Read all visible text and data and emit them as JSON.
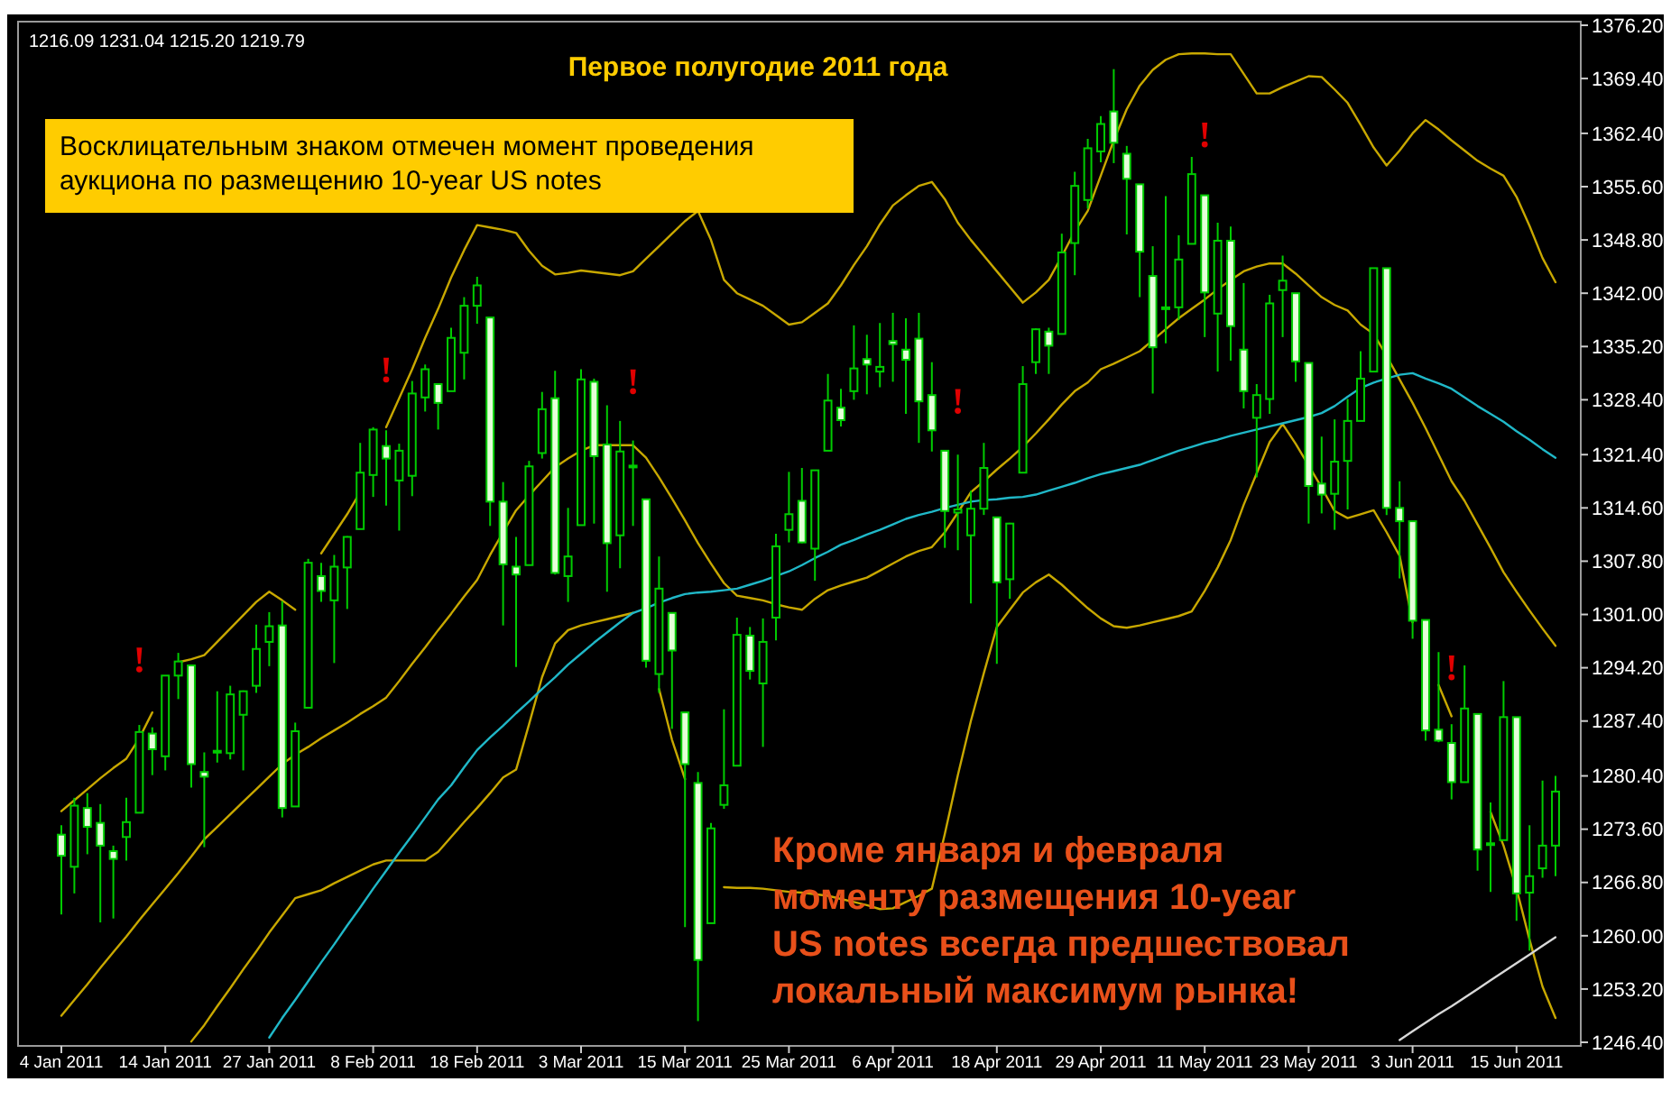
{
  "chart_data": {
    "type": "candlestick",
    "title": "Первое полугодие 2011 года",
    "annotations": [
      "1216.09 1231.04 1215.20 1219.79",
      "Восклицательным знаком отмечен момент проведения\nаукциона по размещению 10-year US notes",
      "Кроме января и февраля\nмоменту размещения 10-year\nUS notes всегда предшествовал\nлокальный максимум рынка!"
    ],
    "categories": [
      "4 Jan 2011",
      null,
      null,
      null,
      null,
      null,
      null,
      null,
      "14 Jan 2011",
      null,
      null,
      null,
      null,
      null,
      null,
      null,
      "27 Jan 2011",
      null,
      null,
      null,
      null,
      null,
      null,
      null,
      "8 Feb 2011",
      null,
      null,
      null,
      null,
      null,
      null,
      null,
      "18 Feb 2011",
      null,
      null,
      null,
      null,
      null,
      null,
      null,
      "3 Mar 2011",
      null,
      null,
      null,
      null,
      null,
      null,
      null,
      "15 Mar 2011",
      null,
      null,
      null,
      null,
      null,
      null,
      null,
      "25 Mar 2011",
      null,
      null,
      null,
      null,
      null,
      null,
      null,
      "6 Apr 2011",
      null,
      null,
      null,
      null,
      null,
      null,
      null,
      "18 Apr 2011",
      null,
      null,
      null,
      null,
      null,
      null,
      null,
      "29 Apr 2011",
      null,
      null,
      null,
      null,
      null,
      null,
      null,
      "11 May 2011",
      null,
      null,
      null,
      null,
      null,
      null,
      null,
      "23 May 2011",
      null,
      null,
      null,
      null,
      null,
      null,
      null,
      "3 Jun 2011",
      null,
      null,
      null,
      null,
      null,
      null,
      null,
      "15 Jun 2011",
      null,
      null,
      null
    ],
    "ylim": [
      1246.4,
      1376.2
    ],
    "yticks": [
      {
        "value": 1376.2,
        "label": "1376.20"
      },
      {
        "value": 1369.4,
        "label": "1369.40"
      },
      {
        "value": 1362.4,
        "label": "1362.40"
      },
      {
        "value": 1355.6,
        "label": "1355.60"
      },
      {
        "value": 1348.8,
        "label": "1348.80"
      },
      {
        "value": 1342,
        "label": "1342.00"
      },
      {
        "value": 1335.2,
        "label": "1335.20"
      },
      {
        "value": 1328.4,
        "label": "1328.40"
      },
      {
        "value": 1321.4,
        "label": "1321.40"
      },
      {
        "value": 1314.6,
        "label": "1314.60"
      },
      {
        "value": 1307.8,
        "label": "1307.80"
      },
      {
        "value": 1301,
        "label": "1301.00"
      },
      {
        "value": 1294.2,
        "label": "1294.20"
      },
      {
        "value": 1287.4,
        "label": "1287.40"
      },
      {
        "value": 1280.4,
        "label": "1280.40"
      },
      {
        "value": 1273.6,
        "label": "1273.60"
      },
      {
        "value": 1266.8,
        "label": "1266.80"
      },
      {
        "value": 1260,
        "label": "1260.00"
      },
      {
        "value": 1253.2,
        "label": "1253.20"
      },
      {
        "value": 1246.4,
        "label": "1246.40"
      }
    ],
    "color": "#00cc00",
    "ohlc": [
      [
        1272.9,
        1274.1,
        1262.7,
        1270.2
      ],
      [
        1268.8,
        1277.6,
        1265.4,
        1276.6
      ],
      [
        1276.3,
        1278.2,
        1270.4,
        1273.9
      ],
      [
        1274.4,
        1276.8,
        1261.7,
        1271.5
      ],
      [
        1270.8,
        1271.5,
        1262.2,
        1269.8
      ],
      [
        1272.6,
        1277.6,
        1269.6,
        1274.5
      ],
      [
        1275.7,
        1286.9,
        1275.7,
        1286.0
      ],
      [
        1285.8,
        1286.6,
        1280.5,
        1283.8
      ],
      [
        1282.9,
        1293.2,
        1281.1,
        1293.2
      ],
      [
        1293.2,
        1296.1,
        1290.2,
        1295.0
      ],
      [
        1294.5,
        1294.6,
        1278.9,
        1281.9
      ],
      [
        1280.9,
        1283.4,
        1271.3,
        1280.3
      ],
      [
        1283.6,
        1291.2,
        1282.1,
        1283.4
      ],
      [
        1283.3,
        1291.9,
        1282.5,
        1290.8
      ],
      [
        1288.2,
        1291.3,
        1281.1,
        1291.2
      ],
      [
        1291.9,
        1299.7,
        1291.0,
        1296.6
      ],
      [
        1297.5,
        1301.3,
        1294.4,
        1299.5
      ],
      [
        1299.6,
        1302.7,
        1275.1,
        1276.3
      ],
      [
        1276.5,
        1287.2,
        1276.5,
        1286.1
      ],
      [
        1289.1,
        1308.1,
        1289.1,
        1307.6
      ],
      [
        1305.9,
        1307.6,
        1302.6,
        1304.0
      ],
      [
        1302.8,
        1308.6,
        1294.8,
        1307.1
      ],
      [
        1307.0,
        1311.0,
        1301.7,
        1310.9
      ],
      [
        1311.9,
        1322.9,
        1311.9,
        1319.1
      ],
      [
        1318.8,
        1324.9,
        1316.0,
        1324.6
      ],
      [
        1322.5,
        1324.5,
        1314.9,
        1320.9
      ],
      [
        1318.1,
        1322.8,
        1311.7,
        1321.9
      ],
      [
        1318.7,
        1330.8,
        1316.1,
        1329.2
      ],
      [
        1328.7,
        1332.9,
        1326.9,
        1332.3
      ],
      [
        1330.4,
        1330.4,
        1324.6,
        1328.0
      ],
      [
        1329.5,
        1337.6,
        1329.5,
        1336.3
      ],
      [
        1334.4,
        1341.5,
        1331.0,
        1340.4
      ],
      [
        1340.4,
        1344.1,
        1338.1,
        1343.0
      ],
      [
        1338.9,
        1338.9,
        1312.3,
        1315.4
      ],
      [
        1315.4,
        1317.9,
        1299.6,
        1307.4
      ],
      [
        1307.1,
        1310.9,
        1294.3,
        1306.1
      ],
      [
        1307.3,
        1320.6,
        1307.3,
        1319.9
      ],
      [
        1321.6,
        1329.4,
        1320.9,
        1327.2
      ],
      [
        1328.6,
        1332.1,
        1306.1,
        1306.3
      ],
      [
        1305.9,
        1314.6,
        1302.6,
        1308.4
      ],
      [
        1312.4,
        1332.3,
        1312.4,
        1331.0
      ],
      [
        1330.7,
        1331.1,
        1312.6,
        1321.2
      ],
      [
        1322.7,
        1327.7,
        1303.9,
        1310.1
      ],
      [
        1311.1,
        1325.7,
        1306.9,
        1321.8
      ],
      [
        1319.9,
        1323.2,
        1312.3,
        1320.0
      ],
      [
        1315.7,
        1315.7,
        1294.2,
        1295.1
      ],
      [
        1293.4,
        1308.4,
        1291.0,
        1304.3
      ],
      [
        1301.2,
        1301.2,
        1286.4,
        1296.4
      ],
      [
        1288.5,
        1288.5,
        1261.1,
        1281.9
      ],
      [
        1279.5,
        1280.9,
        1249.1,
        1256.9
      ],
      [
        1261.6,
        1274.4,
        1261.6,
        1273.7
      ],
      [
        1276.7,
        1288.9,
        1276.2,
        1279.2
      ],
      [
        1281.7,
        1300.6,
        1281.7,
        1298.4
      ],
      [
        1298.3,
        1299.4,
        1292.7,
        1293.8
      ],
      [
        1292.2,
        1300.5,
        1284.1,
        1297.5
      ],
      [
        1300.6,
        1311.3,
        1297.7,
        1309.7
      ],
      [
        1311.8,
        1319.2,
        1310.2,
        1313.8
      ],
      [
        1315.5,
        1319.7,
        1310.1,
        1310.2
      ],
      [
        1309.4,
        1319.4,
        1305.3,
        1319.4
      ],
      [
        1321.9,
        1331.7,
        1321.9,
        1328.3
      ],
      [
        1327.4,
        1329.8,
        1325.0,
        1325.8
      ],
      [
        1329.5,
        1337.9,
        1328.4,
        1332.4
      ],
      [
        1333.6,
        1336.7,
        1329.1,
        1332.9
      ],
      [
        1332.0,
        1338.2,
        1330.0,
        1332.6
      ],
      [
        1335.9,
        1339.5,
        1330.7,
        1335.5
      ],
      [
        1334.8,
        1338.8,
        1326.6,
        1333.5
      ],
      [
        1336.2,
        1339.5,
        1322.9,
        1328.2
      ],
      [
        1329.0,
        1333.2,
        1321.8,
        1324.5
      ],
      [
        1321.9,
        1321.9,
        1309.5,
        1314.2
      ],
      [
        1314.0,
        1321.4,
        1309.2,
        1314.4
      ],
      [
        1311.1,
        1316.8,
        1302.4,
        1314.5
      ],
      [
        1314.5,
        1322.9,
        1313.7,
        1319.7
      ],
      [
        1313.4,
        1313.4,
        1294.7,
        1305.1
      ],
      [
        1305.5,
        1312.7,
        1303.0,
        1312.6
      ],
      [
        1319.1,
        1332.7,
        1319.1,
        1330.4
      ],
      [
        1333.2,
        1337.5,
        1331.7,
        1337.4
      ],
      [
        1337.1,
        1337.6,
        1331.7,
        1335.3
      ],
      [
        1336.8,
        1349.6,
        1336.8,
        1347.2
      ],
      [
        1348.4,
        1357.5,
        1344.3,
        1355.7
      ],
      [
        1353.9,
        1361.7,
        1352.8,
        1360.5
      ],
      [
        1360.1,
        1364.6,
        1358.7,
        1363.6
      ],
      [
        1365.2,
        1370.6,
        1358.6,
        1361.2
      ],
      [
        1359.8,
        1360.8,
        1349.5,
        1356.6
      ],
      [
        1355.9,
        1355.9,
        1341.5,
        1347.3
      ],
      [
        1344.2,
        1348.0,
        1329.2,
        1335.1
      ],
      [
        1340.2,
        1354.4,
        1335.6,
        1340.2
      ],
      [
        1340.2,
        1349.4,
        1338.6,
        1346.3
      ],
      [
        1348.3,
        1359.4,
        1348.3,
        1357.2
      ],
      [
        1354.5,
        1354.5,
        1336.4,
        1342.1
      ],
      [
        1339.4,
        1351.0,
        1332.0,
        1348.7
      ],
      [
        1348.7,
        1350.5,
        1333.4,
        1337.8
      ],
      [
        1334.8,
        1343.3,
        1327.3,
        1329.5
      ],
      [
        1326.1,
        1330.4,
        1318.5,
        1329.0
      ],
      [
        1328.5,
        1341.8,
        1326.6,
        1340.7
      ],
      [
        1342.4,
        1346.8,
        1336.4,
        1343.6
      ],
      [
        1342.0,
        1342.0,
        1330.7,
        1333.3
      ],
      [
        1333.1,
        1333.1,
        1312.6,
        1317.4
      ],
      [
        1317.7,
        1323.7,
        1313.9,
        1316.3
      ],
      [
        1316.4,
        1325.9,
        1311.8,
        1320.5
      ],
      [
        1320.6,
        1328.5,
        1314.4,
        1325.7
      ],
      [
        1325.7,
        1334.6,
        1325.7,
        1331.1
      ],
      [
        1332.0,
        1345.2,
        1332.0,
        1345.2
      ],
      [
        1345.2,
        1345.2,
        1313.7,
        1314.6
      ],
      [
        1314.6,
        1318.0,
        1305.6,
        1312.9
      ],
      [
        1312.9,
        1312.9,
        1297.9,
        1300.2
      ],
      [
        1300.3,
        1300.3,
        1284.9,
        1286.2
      ],
      [
        1286.3,
        1296.2,
        1284.7,
        1284.9
      ],
      [
        1284.6,
        1287.0,
        1277.4,
        1279.6
      ],
      [
        1279.6,
        1294.5,
        1279.6,
        1289.0
      ],
      [
        1288.3,
        1288.3,
        1268.3,
        1271.0
      ],
      [
        1271.6,
        1277.0,
        1265.6,
        1271.8
      ],
      [
        1272.2,
        1292.5,
        1272.2,
        1287.9
      ],
      [
        1287.9,
        1287.9,
        1261.9,
        1265.4
      ],
      [
        1265.5,
        1274.1,
        1258.1,
        1267.6
      ],
      [
        1268.6,
        1279.8,
        1267.4,
        1271.5
      ],
      [
        1271.5,
        1280.4,
        1267.6,
        1278.4
      ]
    ],
    "series": [
      {
        "type": "line",
        "color": "#c8a800",
        "values": [
          1275.9,
          1277.3,
          1278.7,
          1280.1,
          1281.4,
          1282.6,
          1285.2,
          1288.5,
          null,
          1294.9,
          1295.3,
          1295.8,
          1297.5,
          1299.2,
          1300.9,
          1302.6,
          1303.9,
          1302.8,
          1301.6,
          null,
          1308.8,
          1311.3,
          1313.8,
          1316.6,
          null,
          1324.9,
          1328.6,
          1332.3,
          1336.3,
          1340.0,
          1344.0,
          1347.5,
          1350.7,
          1350.4,
          1350.1,
          1349.7,
          1347.4,
          1345.5,
          1344.4,
          1344.6,
          1344.9,
          1344.7,
          1344.5,
          1344.3,
          1344.8,
          1346.4,
          1348.0,
          1349.6,
          1351.2,
          1352.5,
          1348.8,
          1343.7,
          1342.0,
          1341.2,
          1340.4,
          1339.2,
          1338.0,
          1338.3,
          1339.5,
          1340.7,
          1343.0,
          1345.6,
          1348.0,
          1350.8,
          1353.2,
          1354.5,
          1355.7,
          1356.2,
          1354.0,
          1351.0,
          1348.8,
          1346.8,
          1344.8,
          1342.8,
          1340.8,
          1342.1,
          1343.7,
          1346.7,
          1349.9,
          1352.5,
          1357.0,
          1361.5,
          1365.5,
          1368.5,
          1370.5,
          1371.8,
          1372.5,
          1372.6,
          1372.6,
          1372.5,
          1372.5,
          1370.0,
          1367.5,
          1367.5,
          1368.3,
          1369.0,
          1369.7,
          1369.6,
          1368.0,
          1366.3,
          1363.5,
          1360.6,
          1358.3,
          1360.2,
          1362.4,
          1364.1,
          1362.9,
          1361.5,
          1360.2,
          1358.9,
          1357.9,
          1357.0,
          1354.3,
          1350.6,
          1346.5,
          1343.4
        ]
      },
      {
        "type": "line",
        "color": "#c8a800",
        "values": [
          1249.8,
          1251.8,
          1253.8,
          1255.9,
          1257.9,
          1259.9,
          1262.0,
          1264.0,
          1266.0,
          1268.0,
          1270.1,
          1272.3,
          1273.9,
          1275.5,
          1277.1,
          1278.7,
          1280.3,
          1281.9,
          1283.1,
          1284.1,
          1285.2,
          1286.2,
          1287.2,
          1288.3,
          1289.3,
          1290.4,
          1292.5,
          1294.7,
          1296.8,
          1299.0,
          1301.1,
          1303.3,
          1305.4,
          1308.6,
          1311.5,
          1314.3,
          1316.2,
          1318.0,
          1319.8,
          1320.9,
          1321.9,
          1322.6,
          1322.6,
          1322.6,
          1322.6,
          1321.0,
          1318.5,
          1315.8,
          1313.0,
          1310.1,
          1307.5,
          1305.0,
          1303.4,
          1303.1,
          1302.8,
          1302.3,
          1301.9,
          1301.6,
          1303.0,
          1304.1,
          1304.7,
          1305.2,
          1305.7,
          1306.6,
          1307.5,
          1308.4,
          1309.1,
          1309.6,
          1311.5,
          1314.0,
          1316.6,
          1318.0,
          1319.5,
          1320.9,
          1322.4,
          1324.1,
          1325.9,
          1327.8,
          1329.5,
          1330.6,
          1332.3,
          1333.0,
          1333.8,
          1334.6,
          1336.0,
          1337.4,
          1338.8,
          1340.0,
          1341.2,
          1342.5,
          1343.7,
          1344.8,
          1345.4,
          1345.8,
          1345.8,
          1344.5,
          1343.0,
          1341.5,
          1340.5,
          1339.8,
          1338.0,
          1336.8,
          1334.0,
          1331.0,
          1328.0,
          1324.8,
          1321.4,
          1318.0,
          1315.5,
          1312.5,
          1309.5,
          1306.4,
          1303.9,
          1301.5,
          1299.2,
          1297.0
        ]
      },
      {
        "type": "line",
        "color": "#c8a800",
        "values": [
          null,
          null,
          null,
          null,
          null,
          null,
          null,
          null,
          null,
          null,
          1246.5,
          1248.6,
          1251.0,
          1253.3,
          1255.7,
          1258.0,
          1260.4,
          1262.6,
          1264.8,
          1265.3,
          1265.8,
          1266.7,
          1267.5,
          1268.3,
          1269.1,
          1269.6,
          1269.6,
          1269.6,
          1269.6,
          1270.7,
          1272.6,
          1274.5,
          1276.3,
          1278.2,
          1280.2,
          1281.2,
          1287.0,
          1293.0,
          1297.3,
          1299.0,
          1299.6,
          1300.0,
          1300.4,
          1300.8,
          1301.2,
          null,
          1291.5,
          1285.0,
          1280.0,
          null,
          null,
          1266.2,
          1266.1,
          1266.1,
          1266.0,
          1265.8,
          1265.6,
          1265.5,
          1265.3,
          1265.1,
          1264.7,
          1264.3,
          1263.9,
          1263.4,
          1263.5,
          1264.3,
          1265.1,
          1266.0,
          1273.0,
          1280.5,
          1287.4,
          1293.5,
          1299.4,
          1301.6,
          1303.8,
          1305.1,
          1306.1,
          1304.8,
          1303.3,
          1301.8,
          1300.5,
          1299.5,
          1299.3,
          1299.6,
          1300.0,
          1300.4,
          1300.8,
          1301.4,
          1304.0,
          1307.0,
          1310.5,
          1315.0,
          1319.0,
          1323.0,
          1325.3,
          1322.8,
          1320.0,
          1317.2,
          1314.2,
          1313.3,
          1313.8,
          1314.3,
          1311.5,
          1308.5,
          1300.0,
          null,
          1292.0,
          1288.0,
          null,
          null,
          1275.8,
          1271.5,
          1266.0,
          1259.5,
          1253.5,
          1249.5
        ]
      },
      {
        "type": "line",
        "color": "#20b8c8",
        "values": [
          null,
          null,
          null,
          null,
          null,
          null,
          null,
          null,
          null,
          null,
          null,
          null,
          null,
          null,
          null,
          null,
          1247.0,
          1249.5,
          1251.8,
          1254.2,
          1256.6,
          1258.9,
          1261.3,
          1263.6,
          1266.0,
          1268.3,
          1270.6,
          1272.8,
          1275.1,
          1277.4,
          1279.2,
          1281.5,
          1283.7,
          1285.3,
          1286.8,
          1288.4,
          1289.9,
          1291.5,
          1293.0,
          1294.6,
          1296.0,
          1297.4,
          1298.7,
          1300.0,
          1301.2,
          1301.8,
          1302.5,
          1303.1,
          1303.6,
          1303.8,
          1303.9,
          1304.1,
          1304.3,
          1304.8,
          1305.3,
          1305.9,
          1306.5,
          1307.3,
          1308.2,
          1309.0,
          1309.9,
          1310.5,
          1311.2,
          1311.8,
          1312.5,
          1313.2,
          1313.7,
          1314.1,
          1314.6,
          1315.0,
          1315.4,
          1315.6,
          1315.7,
          1315.9,
          1316.0,
          1316.3,
          1316.8,
          1317.3,
          1317.8,
          1318.4,
          1318.9,
          1319.3,
          1319.7,
          1320.1,
          1320.7,
          1321.3,
          1321.9,
          1322.4,
          1322.9,
          1323.3,
          1323.8,
          1324.2,
          1324.6,
          1325.0,
          1325.4,
          1325.8,
          1326.2,
          1326.7,
          1327.6,
          1328.8,
          1329.9,
          1330.6,
          1331.1,
          1331.6,
          1331.8,
          1331.1,
          1330.5,
          1329.8,
          1328.7,
          1327.6,
          1326.6,
          1325.6,
          1324.4,
          1323.3,
          1322.1,
          1321.0
        ]
      },
      {
        "type": "line",
        "color": "#d8d8d8",
        "values": [
          null,
          null,
          null,
          null,
          null,
          null,
          null,
          null,
          null,
          null,
          null,
          null,
          null,
          null,
          null,
          null,
          null,
          null,
          null,
          null,
          null,
          null,
          null,
          null,
          null,
          null,
          null,
          null,
          null,
          null,
          null,
          null,
          null,
          null,
          null,
          null,
          null,
          null,
          null,
          null,
          null,
          null,
          null,
          null,
          null,
          null,
          null,
          null,
          null,
          null,
          null,
          null,
          null,
          null,
          null,
          null,
          null,
          null,
          null,
          null,
          null,
          null,
          null,
          null,
          null,
          null,
          null,
          null,
          null,
          null,
          null,
          null,
          null,
          null,
          null,
          null,
          null,
          null,
          null,
          null,
          null,
          null,
          null,
          null,
          null,
          null,
          null,
          null,
          null,
          null,
          null,
          null,
          null,
          null,
          null,
          null,
          null,
          null,
          null,
          null,
          null,
          null,
          null,
          1246.7,
          1247.8,
          1248.9,
          1250.0,
          1251.0,
          1252.1,
          1253.2,
          1254.3,
          1255.4,
          1256.5,
          1257.6,
          1258.7,
          1259.8
        ]
      },
      {
        "type": "scatter",
        "color": "#e00000",
        "values": [
          null,
          null,
          null,
          null,
          null,
          null,
          1294,
          null,
          null,
          null,
          null,
          null,
          null,
          null,
          null,
          null,
          null,
          null,
          null,
          null,
          null,
          null,
          null,
          null,
          null,
          1331,
          null,
          null,
          null,
          null,
          null,
          null,
          null,
          null,
          null,
          null,
          null,
          null,
          null,
          null,
          null,
          null,
          null,
          null,
          1329.5,
          null,
          null,
          null,
          null,
          null,
          null,
          null,
          null,
          null,
          null,
          null,
          null,
          null,
          null,
          null,
          null,
          null,
          null,
          null,
          null,
          null,
          null,
          null,
          null,
          1327,
          null,
          null,
          null,
          null,
          null,
          null,
          null,
          null,
          null,
          null,
          null,
          null,
          null,
          null,
          null,
          null,
          null,
          null,
          1361,
          null,
          null,
          null,
          null,
          null,
          null,
          null,
          null,
          null,
          null,
          null,
          null,
          null,
          null,
          null,
          null,
          null,
          null,
          1293,
          null,
          null,
          null,
          null,
          null,
          null,
          null,
          null
        ]
      }
    ]
  }
}
